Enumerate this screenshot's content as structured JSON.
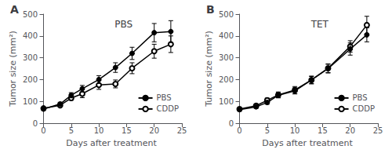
{
  "chart_data": [
    {
      "type": "line",
      "title": "PBS",
      "annotations": [
        "A"
      ],
      "xlabel": "Days after treatment",
      "ylabel": "Tumor size (mm²)",
      "x": [
        0,
        3,
        5,
        7,
        10,
        13,
        16,
        20,
        23
      ],
      "xlim": [
        -0.5,
        25
      ],
      "xticks": [
        0,
        5,
        10,
        15,
        20,
        25
      ],
      "ylim": [
        0,
        500
      ],
      "yticks": [
        0,
        100,
        200,
        300,
        400,
        500
      ],
      "grid": false,
      "legend": "lower right",
      "series": [
        {
          "name": "PBS",
          "color": "black",
          "marker": "circle",
          "values": [
            65,
            88,
            128,
            158,
            200,
            255,
            320,
            415,
            420
          ],
          "yerr": [
            5,
            8,
            12,
            15,
            18,
            22,
            28,
            42,
            50
          ]
        },
        {
          "name": "CDDP",
          "color": "black",
          "marker": "open circle",
          "values": [
            68,
            82,
            115,
            135,
            175,
            180,
            252,
            330,
            362
          ],
          "yerr": [
            5,
            7,
            10,
            18,
            20,
            18,
            25,
            32,
            38
          ]
        }
      ]
    },
    {
      "type": "line",
      "title": "TET",
      "annotations": [
        "B"
      ],
      "xlabel": "Days after treatment",
      "ylabel": "Tumor size (mm²)",
      "x": [
        0,
        3,
        5,
        7,
        10,
        13,
        16,
        20,
        23
      ],
      "xlim": [
        -0.5,
        25
      ],
      "xticks": [
        0,
        5,
        10,
        15,
        20,
        25
      ],
      "ylim": [
        0,
        500
      ],
      "yticks": [
        0,
        100,
        200,
        300,
        400,
        500
      ],
      "grid": false,
      "legend": "lower right",
      "series": [
        {
          "name": "PBS",
          "color": "black",
          "marker": "circle",
          "values": [
            62,
            75,
            95,
            128,
            148,
            198,
            250,
            340,
            405
          ],
          "yerr": [
            5,
            7,
            8,
            12,
            14,
            16,
            20,
            28,
            32
          ]
        },
        {
          "name": "CDDP",
          "color": "black",
          "marker": "open circle",
          "values": [
            65,
            80,
            105,
            130,
            152,
            198,
            252,
            352,
            450
          ],
          "yerr": [
            5,
            7,
            10,
            13,
            16,
            18,
            20,
            26,
            40
          ]
        }
      ]
    }
  ]
}
